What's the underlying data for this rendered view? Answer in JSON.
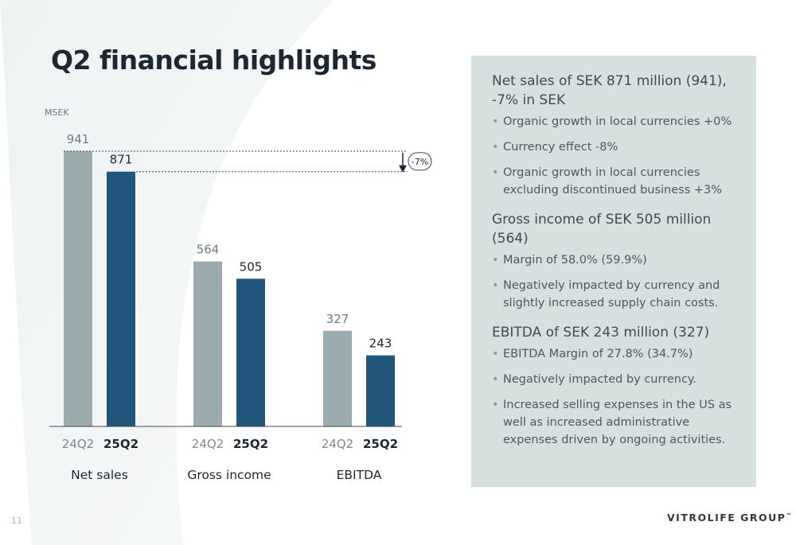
{
  "title": "Q2 financial highlights",
  "page_number": "11",
  "brand": {
    "name": "VITROLIFE GROUP",
    "mark": "™"
  },
  "colors": {
    "prior_period": "#9aacae",
    "current_period": "#22557a",
    "panel_bg": "#d5e0df"
  },
  "chart_data": {
    "type": "bar",
    "unit_label": "MSEK",
    "groups": [
      "Net sales",
      "Gross income",
      "EBITDA"
    ],
    "series": [
      {
        "name": "24Q2",
        "values": [
          941,
          564,
          327
        ]
      },
      {
        "name": "25Q2",
        "values": [
          871,
          505,
          243
        ]
      }
    ],
    "ylim": [
      0,
      941
    ],
    "grid": false,
    "annotation": {
      "text": "-7%",
      "from_value": 941,
      "to_value": 871
    }
  },
  "panel": {
    "sections": [
      {
        "heading": [
          "Net sales of SEK 871 million (941),",
          "-7% in SEK"
        ],
        "bullets": [
          "Organic growth in local currencies +0%",
          "Currency effect -8%",
          "Organic growth in local currencies excluding discontinued business +3%"
        ]
      },
      {
        "heading": [
          "Gross income of SEK 505 million (564)"
        ],
        "bullets": [
          "Margin of 58.0% (59.9%)",
          "Negatively impacted by currency and slightly increased supply chain costs."
        ]
      },
      {
        "heading": [
          "EBITDA of SEK 243 million (327)"
        ],
        "bullets": [
          "EBITDA Margin of 27.8% (34.7%)",
          "Negatively impacted by currency.",
          "Increased selling expenses in the US as well as increased administrative expenses driven by ongoing activities."
        ]
      }
    ]
  }
}
